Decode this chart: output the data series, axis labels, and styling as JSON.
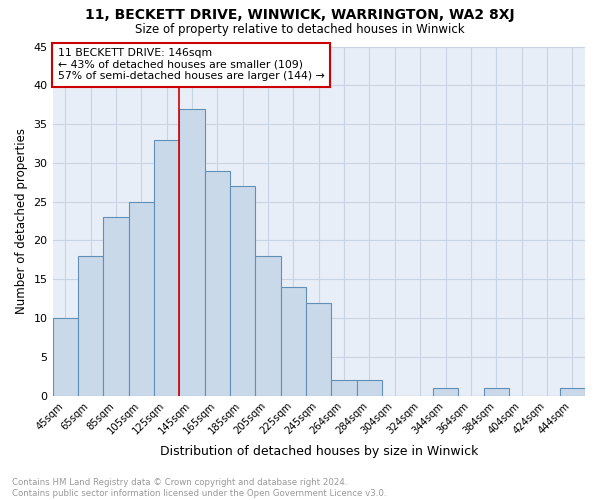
{
  "title": "11, BECKETT DRIVE, WINWICK, WARRINGTON, WA2 8XJ",
  "subtitle": "Size of property relative to detached houses in Winwick",
  "xlabel": "Distribution of detached houses by size in Winwick",
  "ylabel": "Number of detached properties",
  "bar_labels": [
    "45sqm",
    "65sqm",
    "85sqm",
    "105sqm",
    "125sqm",
    "145sqm",
    "165sqm",
    "185sqm",
    "205sqm",
    "225sqm",
    "245sqm",
    "264sqm",
    "284sqm",
    "304sqm",
    "324sqm",
    "344sqm",
    "364sqm",
    "384sqm",
    "404sqm",
    "424sqm",
    "444sqm"
  ],
  "bar_values": [
    10,
    18,
    23,
    25,
    33,
    37,
    29,
    27,
    18,
    14,
    12,
    2,
    2,
    0,
    0,
    1,
    0,
    1,
    0,
    0,
    1
  ],
  "bar_color": "#c9d9ea",
  "bar_edge_color": "#6090b8",
  "vline_index": 5,
  "vline_color": "#cc0000",
  "annotation_line1": "11 BECKETT DRIVE: 146sqm",
  "annotation_line2": "← 43% of detached houses are smaller (109)",
  "annotation_line3": "57% of semi-detached houses are larger (144) →",
  "annotation_box_color": "#ffffff",
  "annotation_box_edge_color": "#cc0000",
  "grid_color": "#c8d4e4",
  "background_color": "#e8eef8",
  "footer_text": "Contains HM Land Registry data © Crown copyright and database right 2024.\nContains public sector information licensed under the Open Government Licence v3.0.",
  "ylim": [
    0,
    45
  ],
  "yticks": [
    0,
    5,
    10,
    15,
    20,
    25,
    30,
    35,
    40,
    45
  ]
}
